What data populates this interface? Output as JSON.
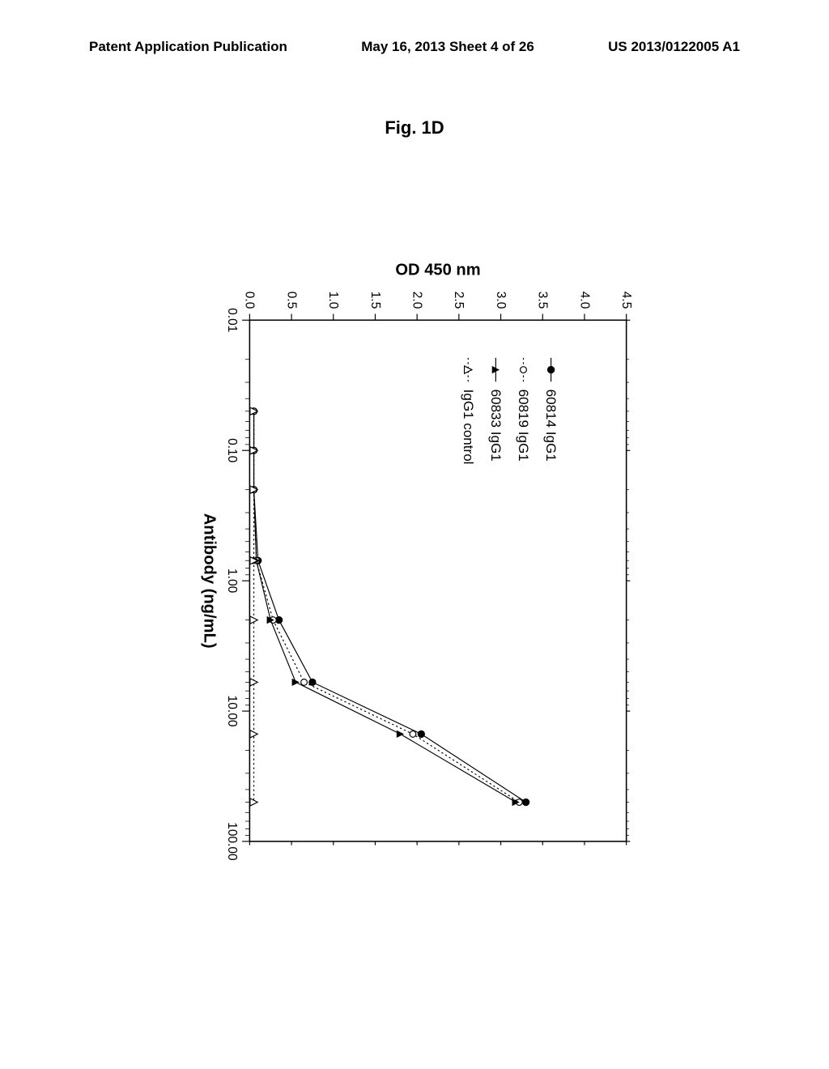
{
  "header": {
    "left": "Patent Application Publication",
    "center": "May 16, 2013  Sheet 4 of 26",
    "right": "US 2013/0122005 A1"
  },
  "figure_title": "Fig. 1D",
  "chart": {
    "type": "line",
    "rotated": true,
    "background_color": "#ffffff",
    "x_axis": {
      "label": "Antibody (ng/mL)",
      "scale": "log",
      "min": 0.01,
      "max": 100.0,
      "major_ticks": [
        0.01,
        0.1,
        1.0,
        10.0,
        100.0
      ],
      "tick_labels": [
        "0.01",
        "0.10",
        "1.00",
        "10.00",
        "100.00"
      ],
      "label_fontsize": 26
    },
    "y_axis": {
      "label": "OD 450 nm",
      "scale": "linear",
      "min": 0.0,
      "max": 4.5,
      "major_ticks": [
        0.0,
        0.5,
        1.0,
        1.5,
        2.0,
        2.5,
        3.0,
        3.5,
        4.0,
        4.5
      ],
      "tick_labels": [
        "0.0",
        "0.5",
        "1.0",
        "1.5",
        "2.0",
        "2.5",
        "3.0",
        "3.5",
        "4.0",
        "4.5"
      ],
      "label_fontsize": 26
    },
    "series": [
      {
        "name": "60814 IgG1",
        "marker": "filled-circle",
        "marker_size": 6,
        "line_style": "solid",
        "color": "#000000",
        "x": [
          0.05,
          0.1,
          0.2,
          0.7,
          2.0,
          6.0,
          15.0,
          50.0
        ],
        "y": [
          0.05,
          0.05,
          0.05,
          0.1,
          0.35,
          0.75,
          2.05,
          3.3
        ]
      },
      {
        "name": "60819 IgG1",
        "marker": "open-circle",
        "marker_size": 5,
        "line_style": "dotted",
        "color": "#000000",
        "x": [
          0.05,
          0.1,
          0.2,
          0.7,
          2.0,
          6.0,
          15.0,
          50.0
        ],
        "y": [
          0.05,
          0.05,
          0.05,
          0.08,
          0.28,
          0.65,
          1.95,
          3.22
        ]
      },
      {
        "name": "60833 IgG1",
        "marker": "filled-triangle",
        "marker_size": 6,
        "line_style": "solid",
        "color": "#000000",
        "x": [
          0.05,
          0.1,
          0.2,
          0.7,
          2.0,
          6.0,
          15.0,
          50.0
        ],
        "y": [
          0.05,
          0.05,
          0.05,
          0.08,
          0.25,
          0.55,
          1.8,
          3.18
        ]
      },
      {
        "name": "IgG1 control",
        "marker": "open-triangle",
        "marker_size": 6,
        "line_style": "dotted",
        "color": "#000000",
        "x": [
          0.05,
          0.1,
          0.2,
          0.7,
          2.0,
          6.0,
          15.0,
          50.0
        ],
        "y": [
          0.05,
          0.05,
          0.05,
          0.05,
          0.05,
          0.05,
          0.05,
          0.05
        ]
      }
    ],
    "legend": {
      "position": "inside-upper-left",
      "fontsize": 22
    }
  }
}
